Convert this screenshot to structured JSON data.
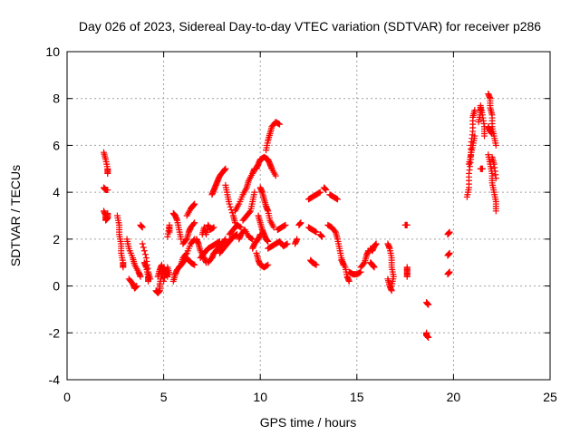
{
  "chart_data": {
    "type": "scatter",
    "title": "Day 026 of 2023, Sidereal Day-to-day VTEC variation (SDTVAR) for receiver p286",
    "xlabel": "GPS time / hours",
    "ylabel": "SDTVAR / TECUs",
    "xlim": [
      0,
      25
    ],
    "ylim": [
      -4,
      10
    ],
    "xticks": [
      0,
      5,
      10,
      15,
      20,
      25
    ],
    "xtick_labels": [
      "0",
      "5",
      "10",
      "15",
      "20",
      "25"
    ],
    "yticks": [
      -4,
      -2,
      0,
      2,
      4,
      6,
      8,
      10
    ],
    "ytick_labels": [
      "-4",
      "-2",
      "0",
      "2",
      "4",
      "6",
      "8",
      "10"
    ],
    "grid": true,
    "marker": "+",
    "color": "#ff0000",
    "tracks": [
      [
        [
          1.9,
          5.7
        ],
        [
          2.0,
          5.4
        ],
        [
          2.1,
          5.0
        ],
        [
          2.1,
          4.8
        ]
      ],
      [
        [
          1.9,
          4.2
        ],
        [
          2.0,
          4.1
        ],
        [
          2.1,
          4.1
        ]
      ],
      [
        [
          1.9,
          3.2
        ],
        [
          2.0,
          3.0
        ],
        [
          2.0,
          2.8
        ],
        [
          2.1,
          2.9
        ],
        [
          2.1,
          3.1
        ]
      ],
      [
        [
          2.6,
          3.0
        ],
        [
          2.7,
          2.6
        ],
        [
          2.7,
          2.2
        ],
        [
          2.8,
          1.8
        ],
        [
          2.8,
          1.4
        ],
        [
          2.9,
          1.0
        ],
        [
          2.9,
          0.8
        ]
      ],
      [
        [
          3.1,
          2.0
        ],
        [
          3.2,
          1.6
        ],
        [
          3.4,
          1.2
        ],
        [
          3.5,
          0.9
        ],
        [
          3.7,
          0.6
        ],
        [
          3.8,
          0.4
        ]
      ],
      [
        [
          3.2,
          0.3
        ],
        [
          3.4,
          0.1
        ],
        [
          3.5,
          -0.1
        ],
        [
          3.6,
          0.0
        ]
      ],
      [
        [
          3.8,
          2.6
        ],
        [
          3.9,
          2.5
        ]
      ],
      [
        [
          3.9,
          1.8
        ],
        [
          4.1,
          1.2
        ],
        [
          4.2,
          0.6
        ],
        [
          4.3,
          0.3
        ]
      ],
      [
        [
          4.0,
          1.0
        ],
        [
          4.1,
          0.8
        ],
        [
          4.2,
          0.4
        ],
        [
          4.2,
          0.2
        ]
      ],
      [
        [
          4.6,
          -0.2
        ],
        [
          4.7,
          -0.3
        ],
        [
          4.8,
          -0.2
        ],
        [
          4.8,
          0.1
        ],
        [
          4.9,
          0.5
        ],
        [
          5.0,
          0.8
        ],
        [
          5.1,
          0.6
        ],
        [
          5.2,
          0.4
        ]
      ],
      [
        [
          4.7,
          0.4
        ],
        [
          4.8,
          0.7
        ],
        [
          4.9,
          0.9
        ],
        [
          5.0,
          0.2
        ],
        [
          5.2,
          0.8
        ],
        [
          5.3,
          0.5
        ]
      ],
      [
        [
          5.2,
          2.1
        ],
        [
          5.3,
          2.6
        ],
        [
          5.3,
          2.3
        ]
      ],
      [
        [
          5.5,
          0.2
        ],
        [
          5.6,
          0.5
        ],
        [
          5.7,
          0.7
        ],
        [
          5.9,
          0.9
        ],
        [
          6.0,
          1.2
        ],
        [
          6.2,
          1.4
        ],
        [
          6.4,
          1.8
        ],
        [
          6.6,
          2.0
        ]
      ],
      [
        [
          5.5,
          3.1
        ],
        [
          5.6,
          3.0
        ],
        [
          5.7,
          2.8
        ],
        [
          5.8,
          2.4
        ],
        [
          5.9,
          2.0
        ]
      ],
      [
        [
          5.8,
          0.8
        ],
        [
          6.0,
          1.0
        ],
        [
          6.2,
          1.2
        ],
        [
          6.4,
          1.0
        ],
        [
          6.6,
          0.9
        ]
      ],
      [
        [
          6.2,
          3.0
        ],
        [
          6.4,
          3.3
        ],
        [
          6.5,
          3.4
        ],
        [
          6.6,
          3.5
        ]
      ],
      [
        [
          6.0,
          1.8
        ],
        [
          6.2,
          2.0
        ],
        [
          6.3,
          2.3
        ],
        [
          6.4,
          2.5
        ],
        [
          6.6,
          2.7
        ]
      ],
      [
        [
          6.7,
          2.0
        ],
        [
          6.8,
          1.8
        ],
        [
          6.9,
          1.5
        ],
        [
          7.1,
          1.2
        ],
        [
          7.2,
          1.0
        ]
      ],
      [
        [
          6.9,
          1.2
        ],
        [
          7.1,
          1.4
        ],
        [
          7.3,
          1.6
        ],
        [
          7.5,
          1.7
        ],
        [
          7.7,
          1.8
        ],
        [
          7.9,
          1.9
        ]
      ],
      [
        [
          7.0,
          2.2
        ],
        [
          7.1,
          2.5
        ],
        [
          7.2,
          2.2
        ],
        [
          7.3,
          2.6
        ],
        [
          7.4,
          2.4
        ],
        [
          7.6,
          2.5
        ]
      ],
      [
        [
          7.3,
          1.0
        ],
        [
          7.5,
          1.2
        ],
        [
          7.6,
          1.4
        ],
        [
          7.8,
          1.6
        ],
        [
          8.0,
          1.8
        ],
        [
          8.2,
          2.0
        ]
      ],
      [
        [
          7.5,
          3.9
        ],
        [
          7.6,
          4.1
        ],
        [
          7.7,
          4.3
        ],
        [
          7.8,
          4.5
        ],
        [
          7.9,
          4.7
        ],
        [
          8.1,
          4.9
        ],
        [
          8.2,
          5.0
        ]
      ],
      [
        [
          7.9,
          1.4
        ],
        [
          8.1,
          1.6
        ],
        [
          8.3,
          1.8
        ],
        [
          8.5,
          2.0
        ],
        [
          8.6,
          2.1
        ],
        [
          8.8,
          2.2
        ]
      ],
      [
        [
          8.2,
          4.3
        ],
        [
          8.3,
          3.9
        ],
        [
          8.4,
          3.5
        ],
        [
          8.6,
          3.0
        ],
        [
          8.7,
          2.7
        ]
      ],
      [
        [
          8.4,
          2.2
        ],
        [
          8.6,
          2.4
        ],
        [
          8.8,
          2.6
        ],
        [
          9.0,
          2.5
        ]
      ],
      [
        [
          8.7,
          3.2
        ],
        [
          8.9,
          3.5
        ],
        [
          9.1,
          3.9
        ],
        [
          9.3,
          4.2
        ],
        [
          9.4,
          4.5
        ],
        [
          9.6,
          4.8
        ],
        [
          9.7,
          5.0
        ]
      ],
      [
        [
          8.9,
          2.0
        ],
        [
          9.0,
          2.2
        ],
        [
          9.2,
          2.4
        ],
        [
          9.4,
          2.1
        ],
        [
          9.6,
          2.0
        ]
      ],
      [
        [
          9.1,
          2.8
        ],
        [
          9.3,
          3.0
        ],
        [
          9.5,
          3.2
        ],
        [
          9.6,
          3.6
        ],
        [
          9.7,
          4.0
        ]
      ],
      [
        [
          9.6,
          1.6
        ],
        [
          9.7,
          1.8
        ],
        [
          9.9,
          2.0
        ],
        [
          10.0,
          2.2
        ]
      ],
      [
        [
          9.8,
          5.0
        ],
        [
          9.9,
          5.2
        ],
        [
          10.0,
          5.4
        ],
        [
          10.2,
          5.5
        ],
        [
          10.4,
          5.4
        ],
        [
          10.5,
          5.2
        ],
        [
          10.6,
          5.0
        ],
        [
          10.8,
          4.7
        ]
      ],
      [
        [
          10.0,
          4.2
        ],
        [
          10.1,
          4.0
        ],
        [
          10.2,
          3.7
        ],
        [
          10.3,
          3.4
        ],
        [
          10.4,
          3.2
        ],
        [
          10.5,
          2.8
        ],
        [
          10.7,
          2.5
        ]
      ],
      [
        [
          9.9,
          3.0
        ],
        [
          10.0,
          2.7
        ],
        [
          10.1,
          2.4
        ],
        [
          10.2,
          2.2
        ],
        [
          10.3,
          2.0
        ],
        [
          10.4,
          1.9
        ]
      ],
      [
        [
          9.8,
          1.4
        ],
        [
          9.9,
          1.1
        ],
        [
          10.0,
          0.9
        ],
        [
          10.2,
          0.8
        ],
        [
          10.4,
          0.9
        ]
      ],
      [
        [
          10.3,
          5.8
        ],
        [
          10.4,
          6.2
        ],
        [
          10.5,
          6.5
        ],
        [
          10.6,
          6.8
        ],
        [
          10.8,
          7.0
        ],
        [
          11.0,
          6.9
        ]
      ],
      [
        [
          10.4,
          1.6
        ],
        [
          10.6,
          1.7
        ],
        [
          10.8,
          1.8
        ],
        [
          11.0,
          1.9
        ],
        [
          11.2,
          1.7
        ],
        [
          11.4,
          1.8
        ]
      ],
      [
        [
          10.9,
          2.4
        ],
        [
          11.1,
          2.5
        ],
        [
          11.3,
          2.6
        ]
      ],
      [
        [
          11.8,
          1.8
        ],
        [
          11.9,
          2.0
        ]
      ],
      [
        [
          12.0,
          2.6
        ],
        [
          12.1,
          2.7
        ]
      ],
      [
        [
          12.5,
          3.7
        ],
        [
          12.7,
          3.8
        ],
        [
          12.9,
          3.9
        ],
        [
          13.1,
          4.0
        ]
      ],
      [
        [
          12.6,
          1.1
        ],
        [
          12.7,
          1.0
        ],
        [
          12.9,
          0.9
        ]
      ],
      [
        [
          12.5,
          2.5
        ],
        [
          12.7,
          2.4
        ],
        [
          12.9,
          2.3
        ]
      ],
      [
        [
          13.1,
          2.2
        ],
        [
          13.2,
          2.1
        ]
      ],
      [
        [
          13.3,
          4.2
        ],
        [
          13.4,
          4.1
        ]
      ],
      [
        [
          13.6,
          3.9
        ],
        [
          13.8,
          3.8
        ],
        [
          14.0,
          3.7
        ]
      ],
      [
        [
          13.5,
          2.6
        ],
        [
          13.7,
          2.5
        ],
        [
          13.9,
          2.3
        ],
        [
          14.0,
          2.0
        ],
        [
          14.1,
          1.6
        ],
        [
          14.2,
          1.2
        ],
        [
          14.3,
          0.9
        ]
      ],
      [
        [
          14.2,
          1.1
        ],
        [
          14.4,
          0.8
        ],
        [
          14.5,
          0.4
        ],
        [
          14.6,
          0.2
        ]
      ],
      [
        [
          14.6,
          0.6
        ],
        [
          14.8,
          0.5
        ],
        [
          15.0,
          0.5
        ],
        [
          15.2,
          0.6
        ]
      ],
      [
        [
          15.2,
          0.8
        ],
        [
          15.4,
          1.0
        ],
        [
          15.5,
          1.3
        ],
        [
          15.6,
          1.5
        ]
      ],
      [
        [
          15.7,
          1.6
        ],
        [
          15.8,
          1.5
        ],
        [
          15.9,
          1.7
        ],
        [
          16.0,
          1.8
        ]
      ],
      [
        [
          15.7,
          1.0
        ],
        [
          15.8,
          0.9
        ],
        [
          15.9,
          0.8
        ]
      ],
      [
        [
          16.6,
          1.8
        ],
        [
          16.7,
          1.6
        ],
        [
          16.8,
          1.2
        ],
        [
          16.8,
          0.8
        ],
        [
          16.9,
          0.4
        ],
        [
          16.8,
          0.0
        ]
      ],
      [
        [
          16.6,
          0.3
        ],
        [
          16.7,
          0.0
        ],
        [
          16.8,
          -0.2
        ]
      ],
      [
        [
          17.5,
          2.6
        ],
        [
          17.6,
          2.6
        ]
      ],
      [
        [
          17.6,
          0.8
        ],
        [
          17.6,
          0.6
        ],
        [
          17.6,
          0.4
        ]
      ],
      [
        [
          18.6,
          -0.7
        ],
        [
          18.7,
          -0.8
        ]
      ],
      [
        [
          18.6,
          -2.0
        ],
        [
          18.6,
          -2.1
        ],
        [
          18.7,
          -2.2
        ]
      ],
      [
        [
          19.7,
          2.2
        ],
        [
          19.8,
          2.3
        ]
      ],
      [
        [
          19.7,
          1.3
        ],
        [
          19.8,
          1.4
        ]
      ],
      [
        [
          19.7,
          0.5
        ],
        [
          19.8,
          0.6
        ]
      ],
      [
        [
          20.7,
          3.8
        ],
        [
          20.8,
          4.2
        ],
        [
          20.8,
          4.8
        ],
        [
          20.9,
          5.4
        ],
        [
          20.9,
          6.0
        ],
        [
          21.0,
          6.6
        ],
        [
          21.0,
          7.2
        ],
        [
          21.1,
          7.5
        ]
      ],
      [
        [
          20.8,
          5.2
        ],
        [
          20.9,
          5.6
        ],
        [
          21.0,
          6.0
        ],
        [
          21.1,
          6.4
        ]
      ],
      [
        [
          21.3,
          7.0
        ],
        [
          21.4,
          7.4
        ],
        [
          21.4,
          7.7
        ],
        [
          21.5,
          7.3
        ],
        [
          21.6,
          6.8
        ],
        [
          21.6,
          6.4
        ]
      ],
      [
        [
          21.4,
          5.0
        ],
        [
          21.5,
          5.0
        ]
      ],
      [
        [
          21.8,
          8.2
        ],
        [
          21.9,
          8.0
        ],
        [
          21.9,
          7.6
        ],
        [
          22.0,
          7.3
        ],
        [
          22.0,
          6.8
        ],
        [
          22.1,
          6.4
        ],
        [
          22.2,
          6.0
        ]
      ],
      [
        [
          21.8,
          6.8
        ],
        [
          21.9,
          6.6
        ],
        [
          22.0,
          6.5
        ]
      ],
      [
        [
          21.8,
          5.6
        ],
        [
          21.9,
          5.2
        ],
        [
          22.0,
          4.8
        ],
        [
          22.0,
          4.4
        ],
        [
          22.1,
          4.0
        ],
        [
          22.2,
          3.6
        ],
        [
          22.2,
          3.2
        ]
      ],
      [
        [
          22.0,
          5.5
        ],
        [
          22.1,
          5.2
        ],
        [
          22.2,
          4.6
        ]
      ]
    ]
  }
}
